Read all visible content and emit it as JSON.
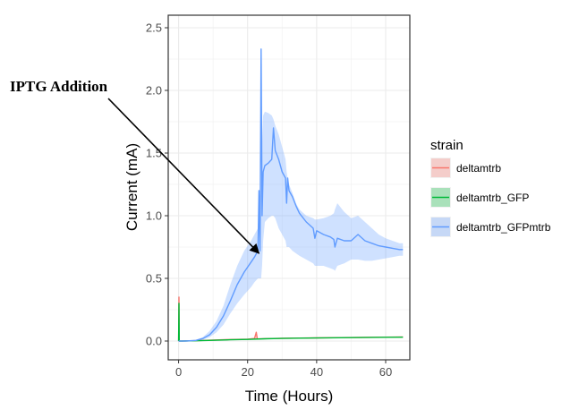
{
  "chart_data": {
    "type": "line",
    "xlabel": "Time (Hours)",
    "ylabel": "Current (mA)",
    "xlim": [
      -3,
      67
    ],
    "ylim": [
      -0.15,
      2.6
    ],
    "xticks": [
      0,
      20,
      40,
      60
    ],
    "xtick_labels": [
      "0",
      "20",
      "40",
      "60"
    ],
    "yticks": [
      0.0,
      0.5,
      1.0,
      1.5,
      2.0,
      2.5
    ],
    "ytick_labels": [
      "0.0",
      "0.5",
      "1.0",
      "1.5",
      "2.0",
      "2.5"
    ],
    "grid": true,
    "legend": {
      "title": "strain",
      "position": "right"
    },
    "series": [
      {
        "name": "deltamtrb",
        "color": "#F8766D",
        "fill": "#F8766D",
        "x": [
          0,
          0.1,
          0.2,
          1,
          5,
          10,
          15,
          20,
          22,
          22.5,
          22.8,
          23,
          30,
          40,
          50,
          60,
          65
        ],
        "y": [
          0.0,
          0.35,
          0.0,
          0.0,
          0.003,
          0.008,
          0.012,
          0.015,
          0.02,
          0.07,
          0.02,
          0.017,
          0.022,
          0.025,
          0.028,
          0.031,
          0.032
        ],
        "lower": [
          0,
          0,
          0,
          0,
          0,
          0.004,
          0.008,
          0.011,
          0.014,
          0.02,
          0.014,
          0.013,
          0.018,
          0.021,
          0.024,
          0.027,
          0.028
        ],
        "upper": [
          0,
          0.38,
          0,
          0,
          0.006,
          0.012,
          0.016,
          0.019,
          0.026,
          0.075,
          0.026,
          0.021,
          0.026,
          0.029,
          0.032,
          0.035,
          0.036
        ]
      },
      {
        "name": "deltamtrb_GFP",
        "color": "#00BA38",
        "fill": "#00BA38",
        "x": [
          0,
          0.1,
          0.2,
          1,
          5,
          10,
          15,
          20,
          25,
          30,
          40,
          50,
          60,
          65
        ],
        "y": [
          0.0,
          0.3,
          0.0,
          0.0,
          0.002,
          0.006,
          0.01,
          0.013,
          0.018,
          0.021,
          0.024,
          0.027,
          0.03,
          0.031
        ],
        "lower": [
          0,
          0,
          0,
          0,
          0,
          0.003,
          0.007,
          0.01,
          0.015,
          0.018,
          0.021,
          0.024,
          0.027,
          0.028
        ],
        "upper": [
          0,
          0.33,
          0,
          0,
          0.005,
          0.01,
          0.013,
          0.017,
          0.022,
          0.025,
          0.028,
          0.031,
          0.034,
          0.035
        ]
      },
      {
        "name": "deltamtrb_GFPmtrb",
        "color": "#619CFF",
        "fill": "#619CFF",
        "x": [
          0,
          2,
          5,
          7,
          9,
          11,
          13,
          15,
          17,
          19,
          21,
          22,
          23,
          23.3,
          23.6,
          23.9,
          24.2,
          24.5,
          25,
          26,
          27,
          27.5,
          28,
          29,
          30,
          31,
          31.3,
          31.6,
          32,
          33,
          34,
          35,
          37,
          39,
          39.5,
          40,
          42,
          44,
          45,
          45.3,
          46,
          48,
          50,
          52,
          54,
          56,
          58,
          60,
          62,
          64,
          65
        ],
        "y": [
          0.0,
          0.0,
          0.005,
          0.02,
          0.05,
          0.11,
          0.2,
          0.32,
          0.45,
          0.55,
          0.63,
          0.67,
          0.72,
          1.2,
          0.72,
          2.33,
          1.0,
          1.35,
          1.4,
          1.42,
          1.45,
          1.7,
          1.52,
          1.45,
          1.35,
          1.3,
          1.1,
          1.3,
          1.2,
          1.15,
          1.08,
          1.02,
          0.95,
          0.9,
          0.82,
          0.88,
          0.85,
          0.83,
          0.81,
          0.75,
          0.82,
          0.8,
          0.8,
          0.85,
          0.8,
          0.78,
          0.76,
          0.75,
          0.74,
          0.73,
          0.73
        ],
        "lower": [
          0,
          0,
          0,
          0.01,
          0.03,
          0.07,
          0.13,
          0.22,
          0.3,
          0.37,
          0.43,
          0.47,
          0.5,
          0.5,
          0.5,
          0.5,
          0.6,
          0.8,
          0.95,
          0.98,
          1.0,
          1.0,
          0.98,
          0.9,
          0.85,
          0.8,
          0.75,
          0.75,
          0.75,
          0.72,
          0.7,
          0.68,
          0.65,
          0.62,
          0.6,
          0.6,
          0.6,
          0.58,
          0.57,
          0.56,
          0.6,
          0.62,
          0.65,
          0.65,
          0.64,
          0.64,
          0.65,
          0.66,
          0.67,
          0.68,
          0.68
        ],
        "upper": [
          0,
          0,
          0.01,
          0.03,
          0.08,
          0.16,
          0.28,
          0.45,
          0.6,
          0.72,
          0.8,
          0.85,
          0.9,
          0.95,
          1.05,
          1.3,
          1.6,
          1.8,
          1.83,
          1.82,
          1.8,
          1.77,
          1.72,
          1.65,
          1.55,
          1.45,
          1.35,
          1.3,
          1.25,
          1.18,
          1.1,
          1.05,
          1.0,
          0.98,
          0.97,
          0.97,
          0.98,
          1.0,
          1.02,
          1.05,
          1.1,
          1.03,
          0.98,
          1.0,
          0.95,
          0.9,
          0.85,
          0.82,
          0.8,
          0.78,
          0.78
        ]
      }
    ]
  },
  "annotation": {
    "text": "IPTG Addition",
    "target_x": 23.3,
    "target_y": 0.7
  }
}
